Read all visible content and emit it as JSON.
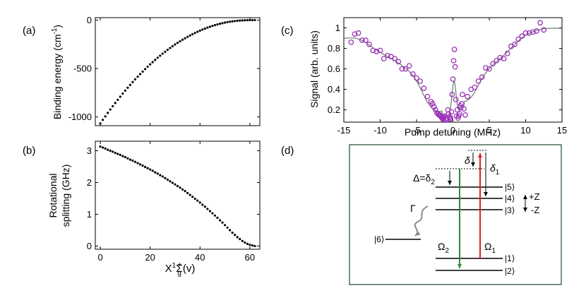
{
  "panel_labels": {
    "a": "(a)",
    "b": "(b)",
    "c": "(c)",
    "d": "(d)"
  },
  "chart_data": [
    {
      "panel": "(a)",
      "type": "scatter",
      "ylabel": "Binding energy (cm",
      "ylabel_sup": "-1",
      "ylabel_close": ")",
      "xlim": [
        -2,
        64
      ],
      "ylim": [
        -1090,
        25
      ],
      "xticks": [
        0,
        20,
        40,
        60
      ],
      "yticks": [
        -1000,
        -500,
        0
      ],
      "ytick_labels": [
        "-1000",
        "-500",
        "0"
      ],
      "xtick_labels_shown": false,
      "grid": false,
      "marker_color": "#000000",
      "x": [
        0,
        1,
        2,
        3,
        4,
        5,
        6,
        7,
        8,
        9,
        10,
        11,
        12,
        13,
        14,
        15,
        16,
        17,
        18,
        19,
        20,
        21,
        22,
        23,
        24,
        25,
        26,
        27,
        28,
        29,
        30,
        31,
        32,
        33,
        34,
        35,
        36,
        37,
        38,
        39,
        40,
        41,
        42,
        43,
        44,
        45,
        46,
        47,
        48,
        49,
        50,
        51,
        52,
        53,
        54,
        55,
        56,
        57,
        58,
        59,
        60,
        61,
        62
      ],
      "y": [
        -1067,
        -1030,
        -994,
        -958,
        -923,
        -889,
        -856,
        -823,
        -791,
        -759,
        -728,
        -698,
        -669,
        -640,
        -612,
        -584,
        -558,
        -532,
        -506,
        -481,
        -457,
        -434,
        -411,
        -389,
        -368,
        -347,
        -327,
        -307,
        -288,
        -270,
        -252,
        -235,
        -219,
        -203,
        -188,
        -173,
        -159,
        -146,
        -133,
        -121,
        -109,
        -98,
        -88,
        -78,
        -69,
        -60,
        -52,
        -45,
        -38,
        -32,
        -26,
        -21,
        -17,
        -13,
        -10,
        -7,
        -5,
        -3,
        -2,
        -1,
        -0.5,
        -0.2,
        0
      ]
    },
    {
      "panel": "(b)",
      "type": "scatter",
      "ylabel_line1": "Rotational",
      "ylabel_line2": "splitting (GHz)",
      "xlabel_base": "X",
      "xlabel_sup1": "1",
      "xlabel_sigma": "Σ",
      "xlabel_sub": "g",
      "xlabel_sup2": "+",
      "xlabel_tail": "(v)",
      "xlim": [
        -2,
        64
      ],
      "ylim": [
        -0.1,
        3.3
      ],
      "xticks": [
        0,
        20,
        40,
        60
      ],
      "xtick_labels": [
        "0",
        "20",
        "40",
        "60"
      ],
      "yticks": [
        0,
        1,
        2,
        3
      ],
      "ytick_labels": [
        "0",
        "1",
        "2",
        "3"
      ],
      "grid": false,
      "marker_color": "#000000",
      "x": [
        0,
        1,
        2,
        3,
        4,
        5,
        6,
        7,
        8,
        9,
        10,
        11,
        12,
        13,
        14,
        15,
        16,
        17,
        18,
        19,
        20,
        21,
        22,
        23,
        24,
        25,
        26,
        27,
        28,
        29,
        30,
        31,
        32,
        33,
        34,
        35,
        36,
        37,
        38,
        39,
        40,
        41,
        42,
        43,
        44,
        45,
        46,
        47,
        48,
        49,
        50,
        51,
        52,
        53,
        54,
        55,
        56,
        57,
        58,
        59,
        60,
        61,
        62
      ],
      "y": [
        3.13,
        3.1,
        3.07,
        3.03,
        3.0,
        2.97,
        2.93,
        2.9,
        2.87,
        2.83,
        2.8,
        2.76,
        2.72,
        2.69,
        2.65,
        2.61,
        2.57,
        2.53,
        2.49,
        2.45,
        2.41,
        2.37,
        2.32,
        2.28,
        2.23,
        2.19,
        2.14,
        2.09,
        2.04,
        1.99,
        1.94,
        1.89,
        1.84,
        1.78,
        1.73,
        1.67,
        1.61,
        1.55,
        1.49,
        1.43,
        1.37,
        1.3,
        1.24,
        1.17,
        1.1,
        1.03,
        0.96,
        0.89,
        0.81,
        0.74,
        0.66,
        0.58,
        0.5,
        0.42,
        0.35,
        0.28,
        0.22,
        0.16,
        0.11,
        0.07,
        0.04,
        0.02,
        0.0
      ]
    },
    {
      "panel": "(c)",
      "type": "scatter",
      "ylabel": "Signal (arb. units)",
      "xlabel": "Pump detuning (MHz)",
      "xlim": [
        -15,
        15
      ],
      "ylim": [
        0.08,
        1.1
      ],
      "xticks": [
        -15,
        -10,
        -5,
        0,
        5,
        10,
        15
      ],
      "xtick_labels": [
        "-15",
        "-10",
        "-5",
        "0",
        "5",
        "10",
        "15"
      ],
      "yticks": [
        0.2,
        0.4,
        0.6,
        0.8,
        1.0
      ],
      "ytick_labels": [
        "0.2",
        "0.4",
        "0.6",
        "0.8",
        "1"
      ],
      "grid": false,
      "marker_color": "#9b30b8",
      "fit_color": "#6a7f6a",
      "series": [
        {
          "kind": "data",
          "x": [
            -14,
            -13.5,
            -13,
            -12.5,
            -12,
            -11.5,
            -11,
            -10.5,
            -10,
            -9.5,
            -9,
            -8.5,
            -8,
            -7.5,
            -7,
            -6.5,
            -6,
            -5.5,
            -5,
            -4.5,
            -4,
            -3.5,
            -3,
            -2.8,
            -2.6,
            -2.4,
            -2.2,
            -2.0,
            -1.9,
            -1.8,
            -1.7,
            -1.6,
            -1.5,
            -1.4,
            -1.3,
            -1.2,
            -1.1,
            -1.0,
            -0.9,
            -0.8,
            -0.7,
            -0.6,
            -0.5,
            -0.4,
            -0.3,
            -0.2,
            -0.1,
            0,
            0.1,
            0.2,
            0.3,
            0.4,
            0.5,
            0.6,
            0.7,
            0.8,
            0.9,
            1.0,
            1.1,
            1.2,
            1.3,
            1.5,
            1.7,
            2,
            2.5,
            3,
            3.5,
            4,
            4.5,
            5,
            5.5,
            6,
            6.5,
            7,
            7.5,
            8,
            8.5,
            9,
            9.5,
            10,
            10.5,
            11,
            11.5,
            12,
            12.5
          ],
          "y": [
            0.86,
            0.94,
            0.95,
            0.88,
            0.88,
            0.84,
            0.78,
            0.77,
            0.78,
            0.7,
            0.73,
            0.72,
            0.7,
            0.67,
            0.6,
            0.6,
            0.63,
            0.55,
            0.51,
            0.48,
            0.41,
            0.33,
            0.28,
            0.26,
            0.23,
            0.2,
            0.17,
            0.16,
            0.15,
            0.15,
            0.14,
            0.13,
            0.12,
            0.11,
            0.12,
            0.13,
            0.14,
            0.11,
            0.1,
            0.12,
            0.2,
            0.16,
            0.13,
            0.11,
            0.12,
            0.18,
            0.35,
            0.5,
            0.68,
            0.79,
            0.62,
            0.3,
            0.14,
            0.2,
            0.12,
            0.14,
            0.16,
            0.24,
            0.22,
            0.26,
            0.35,
            0.21,
            0.15,
            0.33,
            0.4,
            0.42,
            0.48,
            0.52,
            0.61,
            0.6,
            0.65,
            0.68,
            0.71,
            0.7,
            0.75,
            0.82,
            0.84,
            0.89,
            0.92,
            0.95,
            0.95,
            0.96,
            0.97,
            1.05,
            0.98
          ]
        }
      ]
    }
  ],
  "diagram": {
    "levels": {
      "l5": "|5⟩",
      "l4": "|4⟩",
      "l3": "|3⟩",
      "l1": "|1⟩",
      "l2": "|2⟩",
      "l6": "|6⟩"
    },
    "labels": {
      "delta": "δ",
      "delta1": "δ",
      "delta1_sub": "1",
      "Delta_eq": "Δ=δ",
      "Delta_sub": "2",
      "Gamma": "Γ",
      "Omega2": "Ω",
      "Omega2_sub": "2",
      "Omega1": "Ω",
      "Omega1_sub": "1",
      "plusZ": "+Z",
      "minusZ": "-Z"
    },
    "colors": {
      "border": "#1d4a2a",
      "omega2_arrow": "#2a8a3a",
      "omega1_arrow": "#e02020",
      "gamma_arrow": "#8a8a8a"
    }
  }
}
